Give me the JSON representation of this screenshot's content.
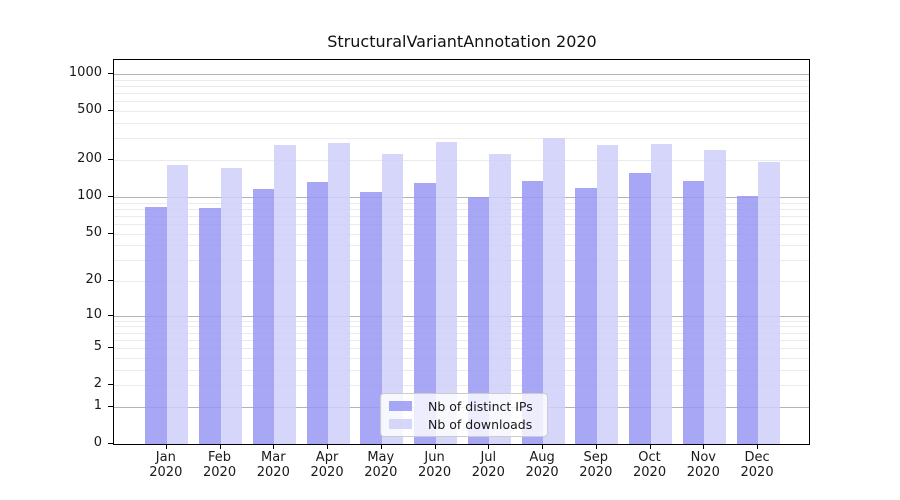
{
  "chart_data": {
    "type": "bar",
    "title": "StructuralVariantAnnotation 2020",
    "scale": "log1p",
    "ylim": [
      0,
      1300
    ],
    "y_ticks": [
      0,
      1,
      2,
      5,
      10,
      20,
      50,
      100,
      200,
      500,
      1000
    ],
    "categories": [
      "Jan",
      "Feb",
      "Mar",
      "Apr",
      "May",
      "Jun",
      "Jul",
      "Aug",
      "Sep",
      "Oct",
      "Nov",
      "Dec"
    ],
    "x_year": "2020",
    "series": [
      {
        "name": "Nb of distinct IPs",
        "color": "#9898f5d9",
        "values": [
          83,
          81,
          116,
          132,
          109,
          130,
          100,
          134,
          119,
          156,
          134,
          101
        ]
      },
      {
        "name": "Nb of downloads",
        "color": "#cfcff9d9",
        "values": [
          183,
          174,
          267,
          278,
          226,
          283,
          226,
          302,
          267,
          270,
          243,
          194
        ]
      }
    ],
    "grid": {
      "major_color": "#b3b3b3",
      "minor_color": "#ebebeb",
      "major_at": [
        1,
        10,
        100,
        1000
      ]
    },
    "legend_position": "inside-bottom-center"
  }
}
